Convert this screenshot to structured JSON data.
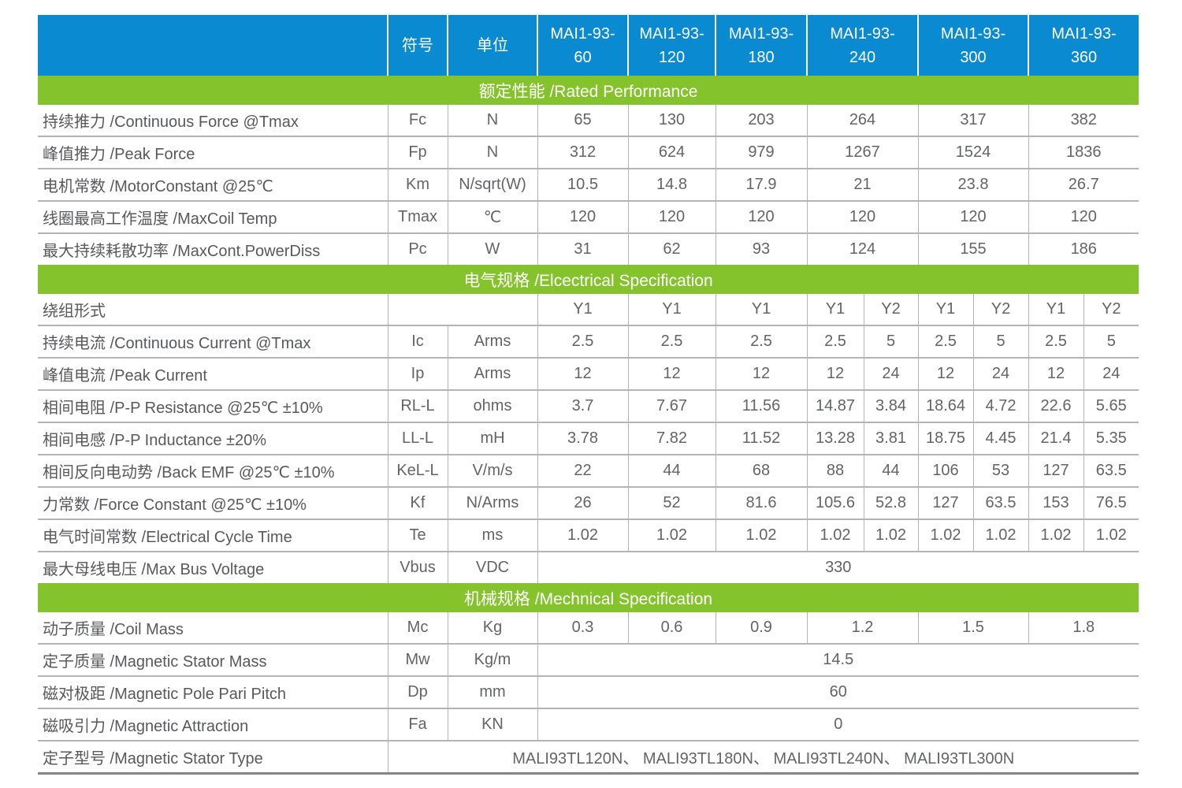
{
  "colors": {
    "header_blue": "#0a8ad0",
    "section_green": "#85c32d",
    "header_text": "#ffffff",
    "label_text": "#58595b",
    "value_text": "#636466",
    "grid_line": "#b4b4b4",
    "bottom_border": "#858585"
  },
  "table": {
    "header": {
      "blank": "",
      "symbol_label": "符号",
      "unit_label": "单位",
      "models": [
        "MAI1-93-60",
        "MAI1-93-120",
        "MAI1-93-180",
        "MAI1-93-240",
        "MAI1-93-300",
        "MAI1-93-360"
      ]
    },
    "sections": [
      {
        "title": "额定性能 /Rated Performance",
        "rows": [
          {
            "kind": "wide",
            "label": "持续推力 /Continuous Force @Tmax",
            "symbol": "Fc",
            "unit": "N",
            "values": [
              "65",
              "130",
              "203",
              "264",
              "317",
              "382"
            ]
          },
          {
            "kind": "wide",
            "label": "峰值推力 /Peak Force",
            "symbol": "Fp",
            "unit": "N",
            "values": [
              "312",
              "624",
              "979",
              "1267",
              "1524",
              "1836"
            ]
          },
          {
            "kind": "wide",
            "label": "电机常数 /MotorConstant @25℃",
            "symbol": "Km",
            "unit": "N/sqrt(W)",
            "values": [
              "10.5",
              "14.8",
              "17.9",
              "21",
              "23.8",
              "26.7"
            ]
          },
          {
            "kind": "wide",
            "label": "线圈最高工作温度 /MaxCoil Temp",
            "symbol": "Tmax",
            "unit": "℃",
            "values": [
              "120",
              "120",
              "120",
              "120",
              "120",
              "120"
            ]
          },
          {
            "kind": "wide",
            "label": "最大持续耗散功率 /MaxCont.PowerDiss",
            "symbol": "Pc",
            "unit": "W",
            "values": [
              "31",
              "62",
              "93",
              "124",
              "155",
              "186"
            ]
          }
        ]
      },
      {
        "title": "电气规格 /Elcectrical Specification",
        "rows": [
          {
            "kind": "winding",
            "label": "绕组形式",
            "values": [
              "Y1",
              "Y1",
              "Y1",
              "Y1",
              "Y2",
              "Y1",
              "Y2",
              "Y1",
              "Y2"
            ]
          },
          {
            "kind": "split",
            "label": "持续电流 /Continuous Current @Tmax",
            "symbol": "Ic",
            "unit": "Arms",
            "values": [
              "2.5",
              "2.5",
              "2.5",
              "2.5",
              "5",
              "2.5",
              "5",
              "2.5",
              "5"
            ]
          },
          {
            "kind": "split",
            "label": "峰值电流 /Peak Current",
            "symbol": "Ip",
            "unit": "Arms",
            "values": [
              "12",
              "12",
              "12",
              "12",
              "24",
              "12",
              "24",
              "12",
              "24"
            ]
          },
          {
            "kind": "split",
            "label": "相间电阻 /P-P Resistance @25℃ ±10%",
            "symbol": "RL-L",
            "unit": "ohms",
            "values": [
              "3.7",
              "7.67",
              "11.56",
              "14.87",
              "3.84",
              "18.64",
              "4.72",
              "22.6",
              "5.65"
            ]
          },
          {
            "kind": "split",
            "label": "相间电感 /P-P Inductance ±20%",
            "symbol": "LL-L",
            "unit": "mH",
            "values": [
              "3.78",
              "7.82",
              "11.52",
              "13.28",
              "3.81",
              "18.75",
              "4.45",
              "21.4",
              "5.35"
            ]
          },
          {
            "kind": "split",
            "label": "相间反向电动势 /Back EMF @25℃ ±10%",
            "symbol": "KeL-L",
            "unit": "V/m/s",
            "values": [
              "22",
              "44",
              "68",
              "88",
              "44",
              "106",
              "53",
              "127",
              "63.5"
            ]
          },
          {
            "kind": "split",
            "label": "力常数 /Force Constant @25℃ ±10%",
            "symbol": "Kf",
            "unit": "N/Arms",
            "values": [
              "26",
              "52",
              "81.6",
              "105.6",
              "52.8",
              "127",
              "63.5",
              "153",
              "76.5"
            ]
          },
          {
            "kind": "split",
            "label": "电气时间常数 /Electrical Cycle Time",
            "symbol": "Te",
            "unit": "ms",
            "values": [
              "1.02",
              "1.02",
              "1.02",
              "1.02",
              "1.02",
              "1.02",
              "1.02",
              "1.02",
              "1.02"
            ]
          },
          {
            "kind": "span",
            "label": "最大母线电压 /Max Bus Voltage",
            "symbol": "Vbus",
            "unit": "VDC",
            "values": [
              "330"
            ]
          }
        ]
      },
      {
        "title": "机械规格 /Mechnical Specification",
        "rows": [
          {
            "kind": "wide",
            "label": "动子质量 /Coil Mass",
            "symbol": "Mc",
            "unit": "Kg",
            "values": [
              "0.3",
              "0.6",
              "0.9",
              "1.2",
              "1.5",
              "1.8"
            ]
          },
          {
            "kind": "span",
            "label": "定子质量 /Magnetic Stator Mass",
            "symbol": "Mw",
            "unit": "Kg/m",
            "values": [
              "14.5"
            ]
          },
          {
            "kind": "span",
            "label": "磁对极距 /Magnetic Pole Pari Pitch",
            "symbol": "Dp",
            "unit": "mm",
            "values": [
              "60"
            ]
          },
          {
            "kind": "span",
            "label": "磁吸引力 /Magnetic Attraction",
            "symbol": "Fa",
            "unit": "KN",
            "values": [
              "0"
            ]
          },
          {
            "kind": "fullspan",
            "label": "定子型号 /Magnetic Stator Type",
            "values": [
              "MALI93TL120N、 MALI93TL180N、 MALI93TL240N、 MALI93TL300N"
            ]
          }
        ]
      }
    ]
  }
}
